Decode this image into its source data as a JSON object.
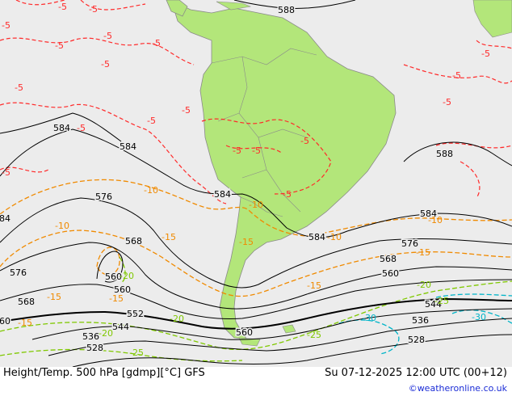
{
  "footer": {
    "title": "Height/Temp. 500 hPa [gdmp][°C] GFS",
    "valid": "Su 07-12-2025 12:00 UTC (00+12)",
    "credit": "©weatheronline.co.uk"
  },
  "colors": {
    "ocean": "#ececec",
    "land": "#b3e67a",
    "height_contour": "#000000",
    "temp_warm": "#ff2a2a",
    "temp_minus10": "#f08a00",
    "temp_minus20": "#7fc800",
    "temp_minus30": "#00b4c8"
  },
  "map": {
    "height_labels": [
      "588",
      "588",
      "584",
      "584",
      "584",
      "584",
      "584",
      "584",
      "576",
      "576",
      "576",
      "568",
      "568",
      "568",
      "560",
      "560",
      "560",
      "560",
      "560",
      "552",
      "544",
      "544",
      "536",
      "536",
      "528",
      "528"
    ],
    "temp_labels_warm": [
      "-5",
      "-5",
      "-5",
      "-5",
      "-5",
      "-5",
      "-5",
      "-5",
      "-5",
      "-5",
      "-5",
      "-5",
      "-5",
      "-5",
      "-5",
      "-5",
      "-5",
      "-5",
      "-5"
    ],
    "temp_labels_minus10": [
      "-10",
      "-10",
      "-10",
      "-10",
      "-10",
      "-15",
      "-15",
      "-15",
      "-15",
      "-15",
      "-15",
      "-15"
    ],
    "temp_labels_minus20": [
      "-20",
      "-20",
      "-20",
      "-20",
      "-25",
      "-25",
      "-25"
    ],
    "temp_labels_minus30": [
      "-30",
      "-30"
    ]
  }
}
